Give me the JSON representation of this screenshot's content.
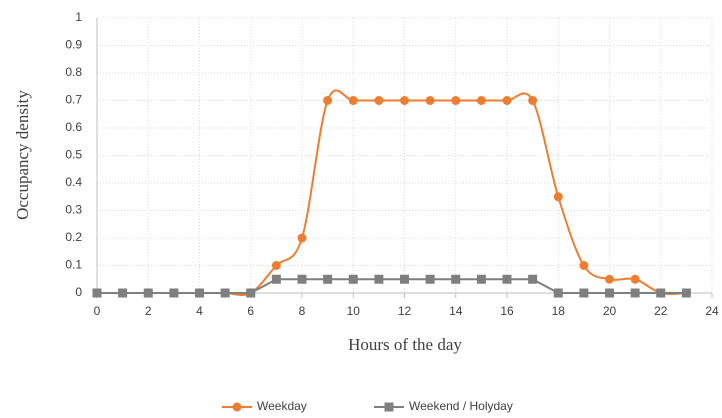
{
  "chart_data": {
    "type": "line",
    "x_label": "Hours of the day",
    "y_label": "Occupancy density",
    "x": [
      0,
      1,
      2,
      3,
      4,
      5,
      6,
      7,
      8,
      9,
      10,
      11,
      12,
      13,
      14,
      15,
      16,
      17,
      18,
      19,
      20,
      21,
      22,
      23
    ],
    "series": [
      {
        "name": "Weekday",
        "color": "#ed7d31",
        "marker": "circle",
        "smooth": true,
        "values": [
          0,
          0,
          0,
          0,
          0,
          0,
          0,
          0.1,
          0.2,
          0.7,
          0.7,
          0.7,
          0.7,
          0.7,
          0.7,
          0.7,
          0.7,
          0.7,
          0.35,
          0.1,
          0.05,
          0.05,
          0,
          0
        ]
      },
      {
        "name": "Weekend / Holyday",
        "color": "#7f7f7f",
        "marker": "square",
        "smooth": false,
        "values": [
          0,
          0,
          0,
          0,
          0,
          0,
          0,
          0.05,
          0.05,
          0.05,
          0.05,
          0.05,
          0.05,
          0.05,
          0.05,
          0.05,
          0.05,
          0.05,
          0,
          0,
          0,
          0,
          0,
          0
        ]
      }
    ],
    "xlim": [
      0,
      24
    ],
    "xticks": [
      0,
      2,
      4,
      6,
      8,
      10,
      12,
      14,
      16,
      18,
      20,
      22,
      24
    ],
    "ylim": [
      0,
      1
    ],
    "yticks": [
      0,
      0.1,
      0.2,
      0.3,
      0.4,
      0.5,
      0.6,
      0.7,
      0.8,
      0.9,
      1
    ],
    "grid": true,
    "legend": "bottom"
  }
}
